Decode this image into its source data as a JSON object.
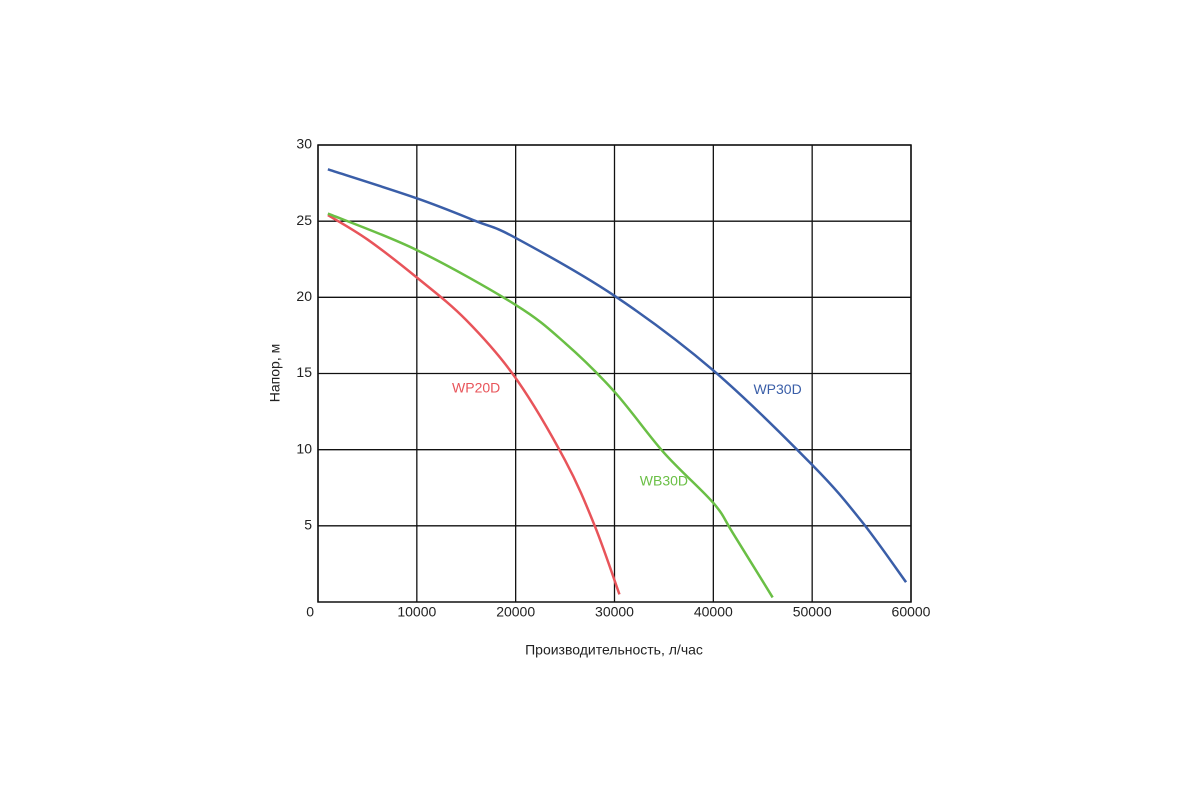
{
  "chart_data": {
    "type": "line",
    "xlabel": "Производительность, л/час",
    "ylabel": "Напор, м",
    "xlim": [
      0,
      60000
    ],
    "ylim": [
      0,
      30
    ],
    "xticks": [
      0,
      10000,
      20000,
      30000,
      40000,
      50000,
      60000
    ],
    "yticks": [
      5,
      10,
      15,
      20,
      25,
      30
    ],
    "grid": true,
    "series": [
      {
        "name": "WP20D",
        "color": "#e8545a",
        "x": [
          1000,
          5000,
          10000,
          15000,
          20000,
          25000,
          28000,
          30500
        ],
        "values": [
          25.4,
          23.8,
          21.3,
          18.5,
          14.7,
          9.3,
          5,
          0.5
        ]
      },
      {
        "name": "WB30D",
        "color": "#6abf45",
        "x": [
          1000,
          10000,
          20000,
          25000,
          30000,
          35000,
          40000,
          42000,
          46000
        ],
        "values": [
          25.5,
          23.1,
          19.5,
          17,
          13.8,
          9.8,
          6.5,
          4.5,
          0.3
        ]
      },
      {
        "name": "WP30D",
        "color": "#3a5ea8",
        "x": [
          1000,
          10000,
          16000,
          20000,
          30000,
          40000,
          50000,
          55000,
          59500
        ],
        "values": [
          28.4,
          26.5,
          25,
          23.9,
          20.1,
          15.2,
          9,
          5.3,
          1.3
        ]
      }
    ]
  }
}
